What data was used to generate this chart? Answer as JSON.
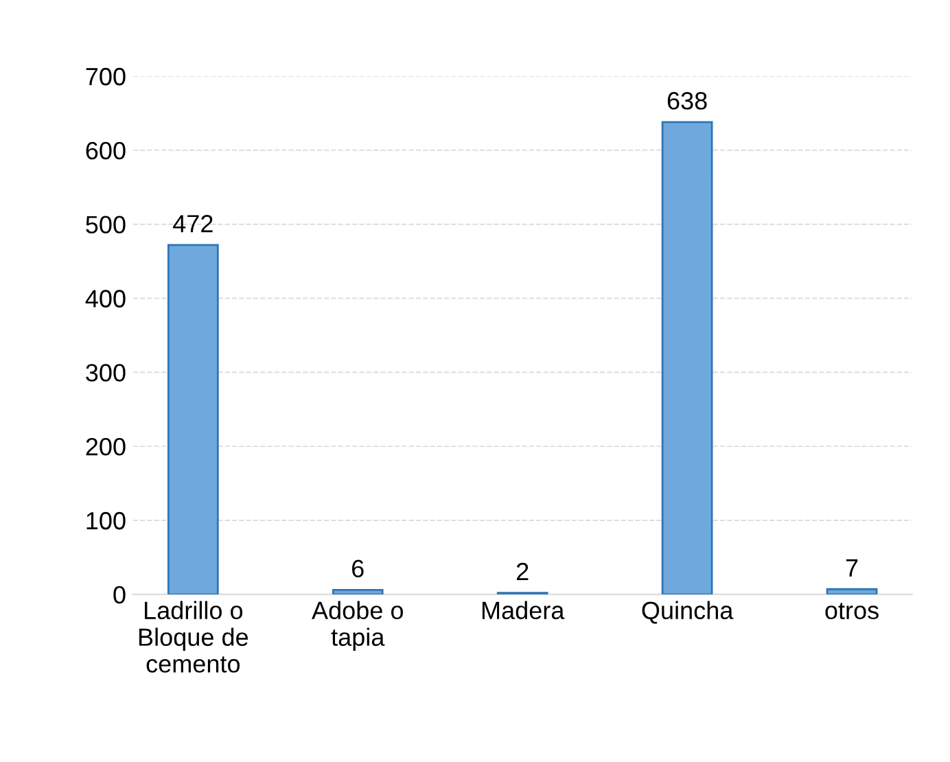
{
  "chart_data": {
    "type": "bar",
    "categories": [
      "Ladrillo o\nBloque de\ncemento",
      "Adobe o\ntapia",
      "Madera",
      "Quincha",
      "otros"
    ],
    "values": [
      472,
      6,
      2,
      638,
      7
    ],
    "color": "#6fa8dc",
    "ylim": [
      0,
      700
    ],
    "yticks": [
      0,
      100,
      200,
      300,
      400,
      500,
      600,
      700
    ],
    "grid": "y",
    "data_labels": true
  }
}
